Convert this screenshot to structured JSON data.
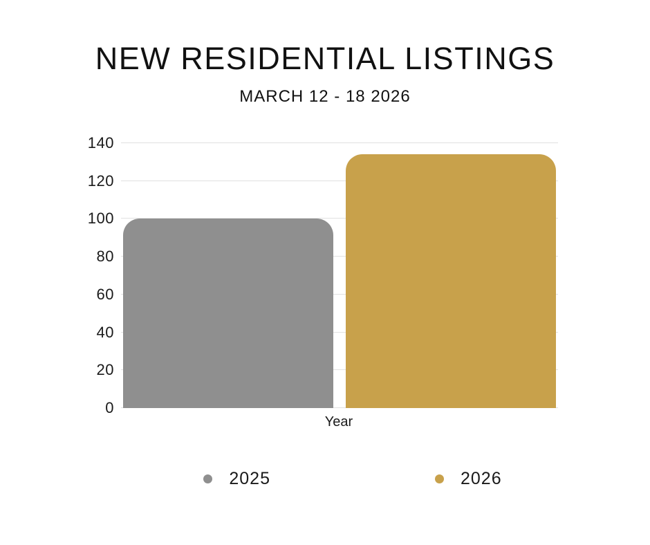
{
  "page": {
    "background": "#ffffff",
    "text_color": "#111111"
  },
  "chart_data": {
    "type": "bar",
    "title": "NEW RESIDENTIAL LISTINGS",
    "subtitle": "MARCH 12 - 18 2026",
    "categories": [
      "Year"
    ],
    "series": [
      {
        "name": "2025",
        "values": [
          100
        ],
        "color": "#8F8F8F"
      },
      {
        "name": "2026",
        "values": [
          134
        ],
        "color": "#C8A14B"
      }
    ],
    "xlabel": "Year",
    "ylabel": "",
    "ylim": [
      0,
      140
    ],
    "yticks": [
      0,
      20,
      40,
      60,
      80,
      100,
      120,
      140
    ],
    "grid": true,
    "gridline_color": "#E1E1E1",
    "bar_corner_radius_px": 24,
    "legend_position": "bottom"
  }
}
